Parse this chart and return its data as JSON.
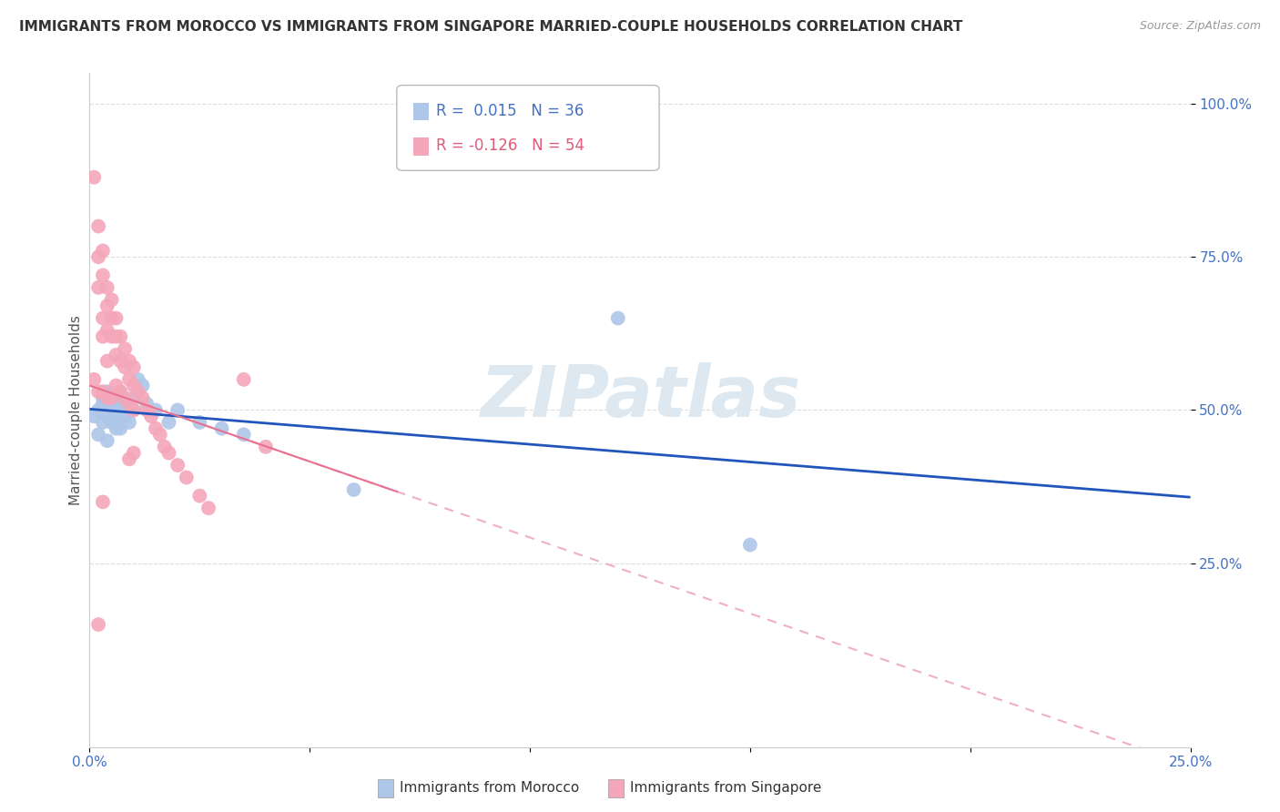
{
  "title": "IMMIGRANTS FROM MOROCCO VS IMMIGRANTS FROM SINGAPORE MARRIED-COUPLE HOUSEHOLDS CORRELATION CHART",
  "source": "Source: ZipAtlas.com",
  "ylabel": "Married-couple Households",
  "xlabel": "",
  "xlim": [
    0.0,
    0.25
  ],
  "ylim": [
    -0.05,
    1.05
  ],
  "ytick_positions": [
    0.25,
    0.5,
    0.75,
    1.0
  ],
  "ytick_labels": [
    "25.0%",
    "50.0%",
    "75.0%",
    "100.0%"
  ],
  "xtick_positions": [
    0.0,
    0.05,
    0.1,
    0.15,
    0.2,
    0.25
  ],
  "xtick_labels": [
    "0.0%",
    "",
    "",
    "",
    "",
    "25.0%"
  ],
  "morocco_R": 0.015,
  "morocco_N": 36,
  "singapore_R": -0.126,
  "singapore_N": 54,
  "morocco_color": "#aec6e8",
  "singapore_color": "#f4a7b9",
  "morocco_line_color": "#2255bb",
  "singapore_line_color": "#e87090",
  "singapore_line_dash_color": "#f0b0c0",
  "watermark_color": "#dde8f0",
  "background_color": "#ffffff",
  "grid_color": "#dddddd",
  "tick_color": "#4472c4",
  "morocco_x": [
    0.001,
    0.002,
    0.002,
    0.003,
    0.003,
    0.003,
    0.004,
    0.004,
    0.004,
    0.005,
    0.005,
    0.005,
    0.006,
    0.006,
    0.006,
    0.007,
    0.007,
    0.007,
    0.008,
    0.008,
    0.009,
    0.009,
    0.01,
    0.01,
    0.011,
    0.012,
    0.013,
    0.015,
    0.018,
    0.02,
    0.025,
    0.03,
    0.035,
    0.06,
    0.12,
    0.15
  ],
  "morocco_y": [
    0.49,
    0.5,
    0.46,
    0.51,
    0.48,
    0.52,
    0.49,
    0.53,
    0.45,
    0.5,
    0.48,
    0.52,
    0.49,
    0.51,
    0.47,
    0.5,
    0.53,
    0.47,
    0.51,
    0.49,
    0.5,
    0.48,
    0.52,
    0.5,
    0.55,
    0.54,
    0.51,
    0.5,
    0.48,
    0.5,
    0.48,
    0.47,
    0.46,
    0.37,
    0.65,
    0.28
  ],
  "singapore_x": [
    0.001,
    0.001,
    0.002,
    0.002,
    0.002,
    0.002,
    0.003,
    0.003,
    0.003,
    0.003,
    0.003,
    0.004,
    0.004,
    0.004,
    0.004,
    0.004,
    0.005,
    0.005,
    0.005,
    0.005,
    0.006,
    0.006,
    0.006,
    0.006,
    0.007,
    0.007,
    0.007,
    0.008,
    0.008,
    0.008,
    0.009,
    0.009,
    0.009,
    0.01,
    0.01,
    0.01,
    0.011,
    0.012,
    0.013,
    0.014,
    0.015,
    0.016,
    0.017,
    0.018,
    0.02,
    0.022,
    0.025,
    0.027,
    0.035,
    0.04,
    0.002,
    0.003,
    0.009,
    0.01
  ],
  "singapore_y": [
    0.88,
    0.55,
    0.8,
    0.75,
    0.7,
    0.53,
    0.76,
    0.72,
    0.65,
    0.62,
    0.53,
    0.7,
    0.67,
    0.63,
    0.58,
    0.52,
    0.68,
    0.65,
    0.62,
    0.52,
    0.65,
    0.62,
    0.59,
    0.54,
    0.62,
    0.58,
    0.53,
    0.6,
    0.57,
    0.52,
    0.58,
    0.55,
    0.51,
    0.57,
    0.54,
    0.5,
    0.53,
    0.52,
    0.5,
    0.49,
    0.47,
    0.46,
    0.44,
    0.43,
    0.41,
    0.39,
    0.36,
    0.34,
    0.55,
    0.44,
    0.15,
    0.35,
    0.42,
    0.43
  ]
}
